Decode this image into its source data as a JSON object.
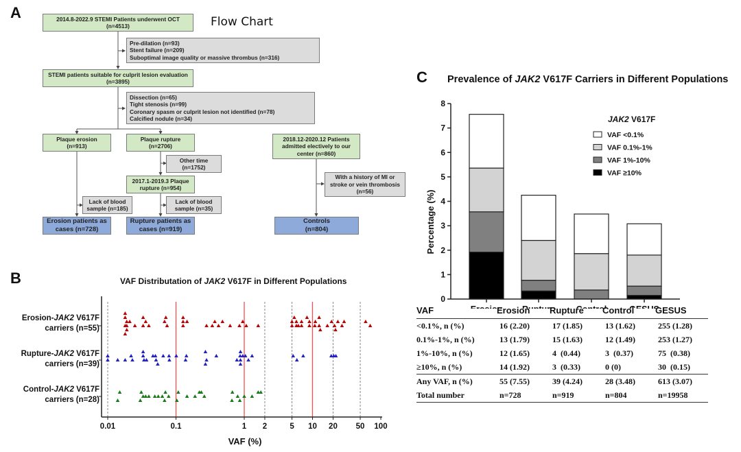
{
  "panels": {
    "a": {
      "letter": "A"
    },
    "b": {
      "letter": "B"
    },
    "c": {
      "letter": "C"
    }
  },
  "flowchart": {
    "title": "Flow Chart",
    "boxes": {
      "oct_patients": "2014.8-2022.9 STEMI Patients underwent OCT\n(n=4513)",
      "exclusion1": "Pre-dilation (n=93)\nStent failure (n=209)\nSuboptimal image quality or massive thrombus (n=316)",
      "suitable": "STEMI patients suitable for culprit lesion evaluation\n(n=3895)",
      "exclusion2": "Dissection (n=65)\nTight stenosis (n=99)\nCoronary spasm or culprit lesion not identified (n=78)\nCalcified nodule (n=34)",
      "erosion": "Plaque erosion\n(n=913)",
      "rupture": "Plaque rupture\n(n=2706)",
      "other_time": "Other time\n(n=1752)",
      "rupture_2017": "2017.1-2019.3 Plaque\nrupture (n=954)",
      "lack_blood_erosion": "Lack of blood\nsample (n=185)",
      "lack_blood_rupture": "Lack of blood\nsample (n=35)",
      "erosion_cases": "Erosion patients as\ncases (n=728)",
      "rupture_cases": "Rupture patients as\ncases (n=919)",
      "control_admitted": "2018.12-2020.12 Patients\nadmitted electively to our\ncenter (n=860)",
      "control_exclusion": "With a history of MI or\nstroke or vein thrombosis\n(n=56)",
      "controls": "Controls\n(n=804)"
    }
  },
  "chart_data": [
    {
      "type": "scatter",
      "title": "VAF Distributation of JAK2 V617F in Different Populations",
      "title_parts": {
        "pre": "VAF Distributation of ",
        "italic": "JAK2",
        "post": " V617F in Different Populations"
      },
      "xlabel": "VAF (%)",
      "xscale": "log",
      "xlim": [
        0.01,
        100
      ],
      "xticks": [
        0.01,
        0.1,
        1,
        2,
        5,
        10,
        20,
        50,
        100
      ],
      "xtick_labels": [
        "0.01",
        "0.1",
        "1",
        "2",
        "5",
        "10",
        "20",
        "50",
        "100"
      ],
      "reference_lines_red": [
        0.1,
        1,
        10
      ],
      "reference_lines_dashed": [
        0.01,
        2,
        5,
        20,
        50
      ],
      "series": [
        {
          "name": "Erosion-JAK2 V617F carriers (n=55)",
          "label_pre": "Erosion-",
          "label_italic": "JAK2",
          "label_post": " V617F",
          "label_line2": "carriers (n=55)",
          "color": "#c00000",
          "points": [
            [
              0.018,
              3
            ],
            [
              0.018,
              2
            ],
            [
              0.019,
              1
            ],
            [
              0.018,
              0
            ],
            [
              0.019,
              0
            ],
            [
              0.019,
              -1
            ],
            [
              0.018,
              -2
            ],
            [
              0.021,
              1
            ],
            [
              0.025,
              0
            ],
            [
              0.033,
              2
            ],
            [
              0.033,
              0
            ],
            [
              0.036,
              1
            ],
            [
              0.04,
              0
            ],
            [
              0.071,
              2
            ],
            [
              0.068,
              1
            ],
            [
              0.074,
              0
            ],
            [
              0.127,
              2
            ],
            [
              0.127,
              1
            ],
            [
              0.127,
              0
            ],
            [
              0.145,
              1
            ],
            [
              0.28,
              0
            ],
            [
              0.34,
              0
            ],
            [
              0.37,
              1
            ],
            [
              0.42,
              0
            ],
            [
              0.48,
              1
            ],
            [
              0.62,
              0
            ],
            [
              0.85,
              0
            ],
            [
              0.95,
              1
            ],
            [
              1.07,
              0
            ],
            [
              1.6,
              0
            ],
            [
              5.0,
              1
            ],
            [
              5.0,
              0
            ],
            [
              5.4,
              2
            ],
            [
              5.8,
              1
            ],
            [
              5.8,
              0
            ],
            [
              6.2,
              0
            ],
            [
              6.9,
              1
            ],
            [
              6.9,
              0
            ],
            [
              8.3,
              2
            ],
            [
              9.0,
              0
            ],
            [
              9.0,
              1
            ],
            [
              10.8,
              0
            ],
            [
              11.0,
              1
            ],
            [
              12.5,
              2
            ],
            [
              12.5,
              0
            ],
            [
              13.0,
              -1
            ],
            [
              16.5,
              0
            ],
            [
              19.0,
              1
            ],
            [
              21.0,
              0
            ],
            [
              21.7,
              -1
            ],
            [
              23.5,
              1
            ],
            [
              27.0,
              0
            ],
            [
              29.0,
              1
            ],
            [
              60.0,
              1
            ],
            [
              70.0,
              0
            ]
          ]
        },
        {
          "name": "Rupture-JAK2 V617F carriers (n=39)",
          "label_pre": "Rupture-",
          "label_italic": "JAK2",
          "label_post": " V617F",
          "label_line2": "carriers (n=39)",
          "color": "#1f1fcc",
          "points": [
            [
              0.01,
              1
            ],
            [
              0.01,
              0
            ],
            [
              0.014,
              0
            ],
            [
              0.018,
              0
            ],
            [
              0.022,
              1
            ],
            [
              0.023,
              0
            ],
            [
              0.033,
              2
            ],
            [
              0.033,
              1
            ],
            [
              0.034,
              0
            ],
            [
              0.037,
              0
            ],
            [
              0.046,
              1
            ],
            [
              0.05,
              1
            ],
            [
              0.051,
              0
            ],
            [
              0.054,
              -1
            ],
            [
              0.065,
              1
            ],
            [
              0.079,
              1
            ],
            [
              0.08,
              0
            ],
            [
              0.101,
              1
            ],
            [
              0.142,
              1
            ],
            [
              0.138,
              0
            ],
            [
              0.27,
              2
            ],
            [
              0.28,
              0
            ],
            [
              0.27,
              -1
            ],
            [
              0.39,
              1
            ],
            [
              0.78,
              0
            ],
            [
              0.87,
              1
            ],
            [
              0.88,
              2
            ],
            [
              0.88,
              0
            ],
            [
              0.88,
              -1
            ],
            [
              0.95,
              1
            ],
            [
              1.04,
              1
            ],
            [
              1.15,
              0
            ],
            [
              5.9,
              0
            ],
            [
              7.3,
              1
            ],
            [
              18.8,
              1
            ],
            [
              20.5,
              1
            ],
            [
              22.0,
              1
            ],
            [
              5.2,
              1
            ],
            [
              1.3,
              1
            ]
          ]
        },
        {
          "name": "Control-JAK2 V617F carriers (n=28)",
          "label_pre": "Control-",
          "label_italic": "JAK2",
          "label_post": " V617F",
          "label_line2": "carriers (n=28)",
          "color": "#1a7a1a",
          "points": [
            [
              0.015,
              1
            ],
            [
              0.014,
              -1
            ],
            [
              0.031,
              1
            ],
            [
              0.033,
              0
            ],
            [
              0.03,
              -1
            ],
            [
              0.036,
              0
            ],
            [
              0.04,
              0
            ],
            [
              0.049,
              0
            ],
            [
              0.055,
              0
            ],
            [
              0.063,
              0
            ],
            [
              0.07,
              1
            ],
            [
              0.068,
              -1
            ],
            [
              0.078,
              0
            ],
            [
              0.108,
              1
            ],
            [
              0.103,
              -1
            ],
            [
              0.145,
              0
            ],
            [
              0.19,
              0
            ],
            [
              0.22,
              1
            ],
            [
              0.235,
              1
            ],
            [
              0.26,
              0
            ],
            [
              0.67,
              1
            ],
            [
              0.66,
              -1
            ],
            [
              0.8,
              0
            ],
            [
              0.86,
              -1
            ],
            [
              1.0,
              0
            ],
            [
              1.3,
              0
            ],
            [
              1.6,
              1
            ],
            [
              1.75,
              1
            ]
          ]
        }
      ]
    },
    {
      "type": "bar",
      "stacked": true,
      "title": "Prevalence of JAK2 V617F Carriers in Different Populations",
      "title_parts": {
        "pre": "Prevalence of ",
        "italic": "JAK2",
        "post": " V617F Carriers in Different Populations"
      },
      "xlabel": "",
      "ylabel": "Percentage (%)",
      "ylim": [
        0,
        8
      ],
      "yticks": [
        0,
        1,
        2,
        3,
        4,
        5,
        6,
        7,
        8
      ],
      "categories": [
        "Erosion",
        "Rupture",
        "Control",
        "GESUS"
      ],
      "legend": {
        "title_italic": "JAK2",
        "title_post": " V617F",
        "position": "top-right"
      },
      "series": [
        {
          "name": "VAF ≥10%",
          "color": "#000000",
          "values": [
            1.92,
            0.33,
            0,
            0.15
          ]
        },
        {
          "name": "VAF 1%-10%",
          "color": "#808080",
          "values": [
            1.65,
            0.44,
            0.37,
            0.38
          ]
        },
        {
          "name": "VAF 0.1%-1%",
          "color": "#d3d3d3",
          "values": [
            1.79,
            1.63,
            1.49,
            1.27
          ]
        },
        {
          "name": "VAF <0.1%",
          "color": "#ffffff",
          "values": [
            2.2,
            1.85,
            1.62,
            1.28
          ]
        }
      ],
      "legend_order": [
        "VAF <0.1%",
        "VAF 0.1%-1%",
        "VAF 1%-10%",
        "VAF ≥10%"
      ]
    }
  ],
  "table": {
    "headers": [
      "VAF",
      "Erosion",
      "Rupture",
      "Control",
      "GESUS"
    ],
    "rows": [
      [
        "<0.1%, n (%)",
        "16 (2.20)",
        "17 (1.85)",
        "13 (1.62)",
        "255 (1.28)"
      ],
      [
        "0.1%-1%, n (%)",
        "13 (1.79)",
        "15 (1.63)",
        "12 (1.49)",
        "253 (1.27)"
      ],
      [
        "1%-10%, n (%)",
        "12 (1.65)",
        "4  (0.44)",
        "3  (0.37)",
        "75  (0.38)"
      ],
      [
        "≥10%, n (%)",
        "14 (1.92)",
        "3  (0.33)",
        "0 (0)",
        "30  (0.15)"
      ],
      [
        "Any VAF, n (%)",
        "55 (7.55)",
        "39 (4.24)",
        "28 (3.48)",
        "613 (3.07)"
      ],
      [
        "Total number",
        "n=728",
        "n=919",
        "n=804",
        "n=19958"
      ]
    ]
  }
}
